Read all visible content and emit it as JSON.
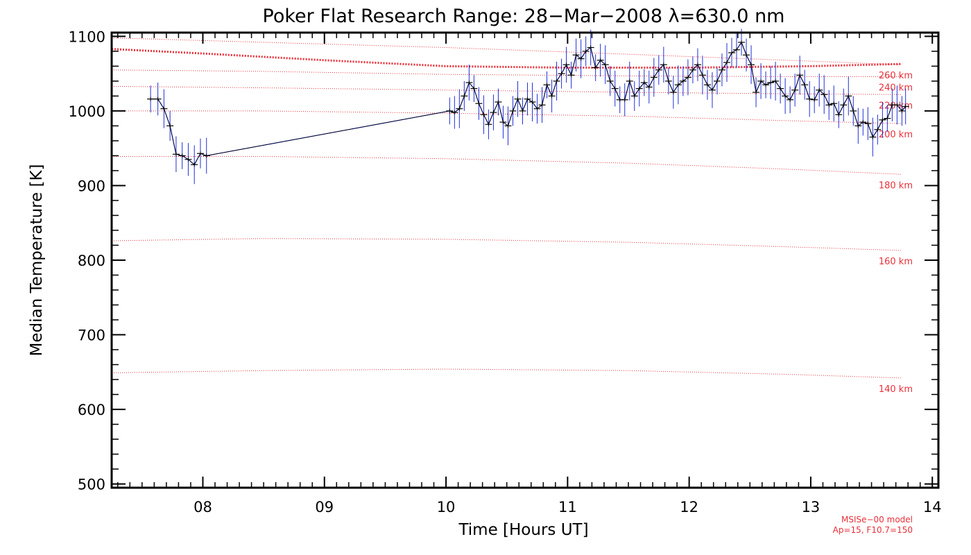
{
  "chart_data": {
    "type": "line",
    "title": "Poker Flat Research Range: 28−Mar−2008 λ=630.0 nm",
    "xlabel": "Time [Hours UT]",
    "ylabel": "Median Temperature [K]",
    "xlim": [
      7.25,
      14.05
    ],
    "ylim": [
      495,
      1105
    ],
    "x_ticks": [
      8,
      9,
      10,
      11,
      12,
      13,
      14
    ],
    "x_tick_labels": [
      "08",
      "09",
      "10",
      "11",
      "12",
      "13",
      "14"
    ],
    "y_ticks": [
      500,
      600,
      700,
      800,
      900,
      1000,
      1100
    ],
    "y_tick_labels": [
      "500",
      "600",
      "700",
      "800",
      "900",
      "1000",
      "1100"
    ],
    "grid": false,
    "colors": {
      "data": "#1f2fd6",
      "median": "#000000",
      "model": "#e8303a"
    },
    "series": [
      {
        "kind": "measured",
        "error_bar": 18,
        "x": [
          7.57,
          7.63,
          7.68,
          7.73,
          7.78,
          7.83,
          7.88,
          7.93,
          7.98,
          8.03,
          10.03,
          10.07,
          10.11,
          10.15,
          10.19,
          10.23,
          10.27,
          10.31,
          10.35,
          10.39,
          10.43,
          10.47,
          10.51,
          10.55,
          10.59,
          10.63,
          10.67,
          10.71,
          10.75,
          10.79,
          10.83,
          10.87,
          10.91,
          10.95,
          10.99,
          11.03,
          11.07,
          11.11,
          11.15,
          11.19,
          11.23,
          11.27,
          11.31,
          11.35,
          11.39,
          11.43,
          11.47,
          11.51,
          11.55,
          11.59,
          11.63,
          11.67,
          11.71,
          11.75,
          11.79,
          11.83,
          11.87,
          11.91,
          11.95,
          11.99,
          12.03,
          12.07,
          12.11,
          12.15,
          12.19,
          12.23,
          12.27,
          12.31,
          12.35,
          12.39,
          12.43,
          12.47,
          12.51,
          12.55,
          12.59,
          12.63,
          12.67,
          12.71,
          12.75,
          12.79,
          12.83,
          12.87,
          12.91,
          12.95,
          12.99,
          13.03,
          13.07,
          13.11,
          13.15,
          13.19,
          13.23,
          13.27,
          13.31,
          13.35,
          13.39,
          13.43,
          13.47,
          13.51,
          13.55,
          13.59,
          13.63,
          13.67,
          13.71,
          13.75,
          13.78
        ],
        "y": [
          1016,
          1016,
          1003,
          980,
          942,
          940,
          935,
          928,
          943,
          940,
          1000,
          998,
          1003,
          1020,
          1038,
          1030,
          1010,
          995,
          982,
          998,
          1012,
          985,
          980,
          1000,
          1016,
          1000,
          1016,
          1012,
          1003,
          1008,
          1035,
          1020,
          1040,
          1050,
          1062,
          1048,
          1075,
          1070,
          1080,
          1085,
          1058,
          1068,
          1062,
          1040,
          1030,
          1015,
          1015,
          1040,
          1020,
          1030,
          1038,
          1032,
          1045,
          1055,
          1062,
          1040,
          1025,
          1035,
          1040,
          1045,
          1055,
          1062,
          1048,
          1035,
          1028,
          1040,
          1055,
          1065,
          1078,
          1082,
          1092,
          1075,
          1062,
          1025,
          1040,
          1035,
          1038,
          1040,
          1030,
          1020,
          1015,
          1028,
          1048,
          1035,
          1016,
          1015,
          1028,
          1022,
          1008,
          1010,
          995,
          1008,
          1020,
          1000,
          980,
          985,
          983,
          965,
          975,
          988,
          990,
          1008,
          1008,
          1000,
          1006
        ]
      }
    ],
    "model_lines": [
      {
        "label": "140 km",
        "y": [
          649,
          652,
          654,
          652,
          647,
          642
        ]
      },
      {
        "label": "160 km",
        "y": [
          826,
          829,
          828,
          824,
          818,
          813
        ]
      },
      {
        "label": "180 km",
        "y": [
          939,
          939,
          936,
          930,
          922,
          915
        ]
      },
      {
        "label": "200 km",
        "y": [
          1000,
          1000,
          997,
          993,
          987,
          983
        ]
      },
      {
        "label": "220 km",
        "y": [
          1033,
          1031,
          1028,
          1025,
          1023,
          1022
        ]
      },
      {
        "label": "240 km",
        "y": [
          1055,
          1053,
          1049,
          1047,
          1046,
          1046
        ]
      },
      {
        "label": "260 km",
        "y": [
          1098,
          1092,
          1085,
          1076,
          1068,
          1062
        ]
      }
    ],
    "model_x": [
      7.25,
      8.5,
      10.0,
      11.5,
      12.8,
      13.75
    ],
    "thick_model_line": {
      "x": [
        7.25,
        8.0,
        9.0,
        10.0,
        11.0,
        12.0,
        13.0,
        13.75
      ],
      "y": [
        1083,
        1077,
        1068,
        1060,
        1058,
        1058,
        1060,
        1063
      ]
    },
    "model_note": [
      "MSISe−00 model",
      "Ap=15, F10.7=150"
    ]
  }
}
